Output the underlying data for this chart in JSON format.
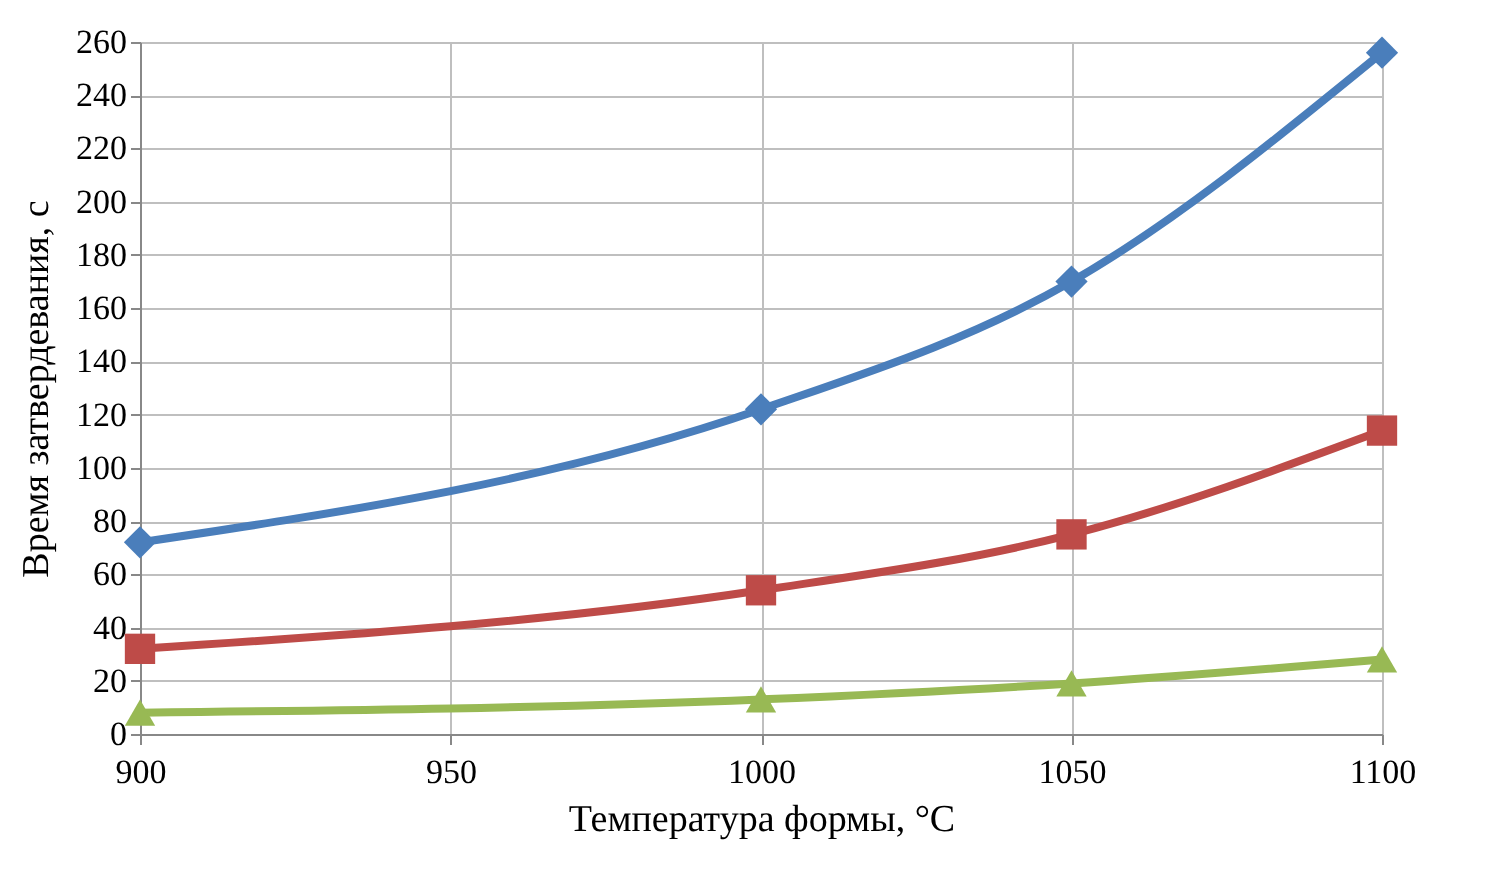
{
  "chart_data": {
    "type": "line",
    "xlabel": "Температура формы,  °C",
    "ylabel": "Время затвердевания, с",
    "x": [
      900,
      1000,
      1050,
      1100
    ],
    "series": [
      {
        "color": "#4a7ebb",
        "marker": "diamond",
        "values": [
          72,
          122,
          170,
          256
        ]
      },
      {
        "color": "#be4b48",
        "marker": "square",
        "values": [
          32,
          54,
          75,
          114
        ]
      },
      {
        "color": "#98b954",
        "marker": "triangle",
        "values": [
          8,
          13,
          19,
          28
        ]
      }
    ],
    "xlim": [
      900,
      1100
    ],
    "xticks": [
      900,
      950,
      1000,
      1050,
      1100
    ],
    "ylim": [
      0,
      260
    ],
    "yticks": [
      0,
      20,
      40,
      60,
      80,
      100,
      120,
      140,
      160,
      180,
      200,
      220,
      240,
      260
    ],
    "grid": true,
    "line_style": "solid"
  }
}
